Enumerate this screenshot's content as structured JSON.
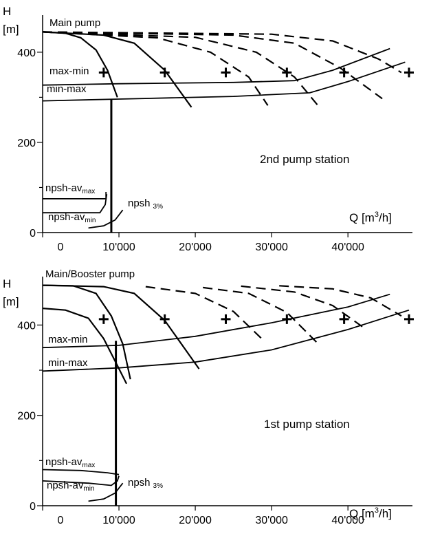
{
  "chart_data": [
    {
      "type": "line",
      "station_label": "2nd pump station",
      "curve_label": "Main pump",
      "ylabel": "H",
      "yunit": "[m]",
      "xlabel": "Q [m",
      "xlabel_sup": "3",
      "xlabel_end": "/h]",
      "xlim": [
        0,
        48000
      ],
      "ylim": [
        0,
        470
      ],
      "xticks": [
        0,
        10000,
        20000,
        30000,
        40000
      ],
      "xtick_labels": [
        "0",
        "10'000",
        "20'000",
        "30'000",
        "40'000"
      ],
      "yticks": [
        0,
        200,
        400
      ],
      "ytick_labels": [
        "0",
        "200",
        "400"
      ],
      "annotations": {
        "max_min": "max-min",
        "min_max": "min-max",
        "npsh_av": "npsh-av",
        "sub_max": "max",
        "sub_min": "min",
        "npsh3": "npsh",
        "npsh3_sub": "3%"
      },
      "pump_curves_solid": [
        [
          [
            0,
            445
          ],
          [
            3000,
            442
          ],
          [
            5000,
            432
          ],
          [
            7000,
            405
          ],
          [
            8500,
            360
          ],
          [
            9800,
            300
          ]
        ],
        [
          [
            0,
            445
          ],
          [
            8000,
            438
          ],
          [
            12000,
            420
          ],
          [
            16000,
            360
          ],
          [
            19500,
            278
          ]
        ]
      ],
      "pump_curves_dashed": [
        [
          [
            0,
            445
          ],
          [
            15000,
            432
          ],
          [
            22000,
            400
          ],
          [
            27000,
            345
          ],
          [
            29500,
            282
          ]
        ],
        [
          [
            0,
            445
          ],
          [
            20000,
            433
          ],
          [
            28000,
            400
          ],
          [
            33000,
            345
          ],
          [
            36000,
            283
          ]
        ],
        [
          [
            0,
            445
          ],
          [
            25000,
            438
          ],
          [
            33000,
            420
          ],
          [
            39000,
            365
          ],
          [
            44500,
            297
          ]
        ],
        [
          [
            0,
            445
          ],
          [
            30000,
            440
          ],
          [
            38000,
            425
          ],
          [
            44000,
            385
          ],
          [
            47000,
            355
          ]
        ]
      ],
      "system_curves": [
        [
          [
            0,
            327
          ],
          [
            10000,
            330
          ],
          [
            25000,
            333
          ],
          [
            33000,
            337
          ],
          [
            38000,
            360
          ],
          [
            45500,
            408
          ]
        ],
        [
          [
            0,
            292
          ],
          [
            10000,
            296
          ],
          [
            25000,
            302
          ],
          [
            35000,
            310
          ],
          [
            40000,
            335
          ],
          [
            47500,
            378
          ]
        ]
      ],
      "operating_points": [
        [
          8000,
          355
        ],
        [
          16000,
          355
        ],
        [
          24000,
          355
        ],
        [
          32000,
          355
        ],
        [
          39500,
          355
        ],
        [
          48000,
          355
        ]
      ],
      "vertical_line_x": 9000,
      "vertical_line_range": [
        0,
        295
      ],
      "npsh_av_max": [
        [
          0,
          75
        ],
        [
          8300,
          75
        ],
        [
          8300,
          90
        ]
      ],
      "npsh_av_min": [
        [
          0,
          44
        ],
        [
          7500,
          44
        ],
        [
          8200,
          62
        ],
        [
          8400,
          85
        ]
      ],
      "npsh_3": [
        [
          6000,
          10
        ],
        [
          8000,
          15
        ],
        [
          9500,
          28
        ],
        [
          10500,
          50
        ]
      ]
    },
    {
      "type": "line",
      "station_label": "1st pump station",
      "curve_label": "Main/Booster pump",
      "ylabel": "H",
      "yunit": "[m]",
      "xlabel": "Q [m",
      "xlabel_sup": "3",
      "xlabel_end": "/h]",
      "xlim": [
        0,
        48000
      ],
      "ylim": [
        0,
        495
      ],
      "xticks": [
        0,
        10000,
        20000,
        30000,
        40000
      ],
      "xtick_labels": [
        "0",
        "10'000",
        "20'000",
        "30'000",
        "40'000"
      ],
      "yticks": [
        0,
        200,
        400
      ],
      "ytick_labels": [
        "0",
        "200",
        "400"
      ],
      "annotations": {
        "max_min": "max-min",
        "min_max": "min-max",
        "npsh_av": "npsh-av",
        "sub_max": "max",
        "sub_min": "min",
        "npsh3": "npsh",
        "npsh3_sub": "3%"
      },
      "pump_curves_solid": [
        [
          [
            0,
            488
          ],
          [
            4000,
            487
          ],
          [
            7000,
            470
          ],
          [
            9000,
            420
          ],
          [
            10500,
            358
          ],
          [
            11500,
            280
          ]
        ],
        [
          [
            0,
            437
          ],
          [
            3000,
            433
          ],
          [
            6000,
            415
          ],
          [
            8000,
            370
          ],
          [
            9500,
            320
          ],
          [
            11000,
            270
          ]
        ],
        [
          [
            0,
            488
          ],
          [
            8000,
            485
          ],
          [
            12000,
            470
          ],
          [
            16000,
            410
          ],
          [
            20500,
            303
          ]
        ]
      ],
      "pump_curves_dashed": [
        [
          [
            13500,
            485
          ],
          [
            20000,
            470
          ],
          [
            25000,
            430
          ],
          [
            29000,
            365
          ]
        ],
        [
          [
            21000,
            483
          ],
          [
            27000,
            470
          ],
          [
            32000,
            428
          ],
          [
            36000,
            360
          ]
        ],
        [
          [
            26000,
            486
          ],
          [
            33000,
            473
          ],
          [
            38000,
            443
          ],
          [
            42000,
            395
          ]
        ],
        [
          [
            31000,
            487
          ],
          [
            38000,
            480
          ],
          [
            43000,
            460
          ],
          [
            47000,
            420
          ]
        ]
      ],
      "system_curves": [
        [
          [
            0,
            350
          ],
          [
            10000,
            355
          ],
          [
            20000,
            375
          ],
          [
            30000,
            405
          ],
          [
            40000,
            440
          ],
          [
            45500,
            468
          ]
        ],
        [
          [
            0,
            298
          ],
          [
            10000,
            305
          ],
          [
            20000,
            318
          ],
          [
            30000,
            345
          ],
          [
            40000,
            390
          ],
          [
            48000,
            433
          ]
        ]
      ],
      "operating_points": [
        [
          8000,
          413
        ],
        [
          16000,
          413
        ],
        [
          24000,
          413
        ],
        [
          32000,
          413
        ],
        [
          39500,
          413
        ],
        [
          48000,
          413
        ]
      ],
      "vertical_line_x": 9600,
      "vertical_line_range": [
        0,
        365
      ],
      "npsh_av_max": [
        [
          0,
          80
        ],
        [
          5000,
          78
        ],
        [
          8500,
          73
        ],
        [
          10000,
          69
        ]
      ],
      "npsh_av_min": [
        [
          0,
          55
        ],
        [
          6000,
          50
        ],
        [
          9000,
          45
        ],
        [
          9800,
          55
        ],
        [
          10000,
          66
        ]
      ],
      "npsh_3": [
        [
          6000,
          10
        ],
        [
          8000,
          15
        ],
        [
          9500,
          28
        ],
        [
          10500,
          50
        ]
      ]
    }
  ]
}
